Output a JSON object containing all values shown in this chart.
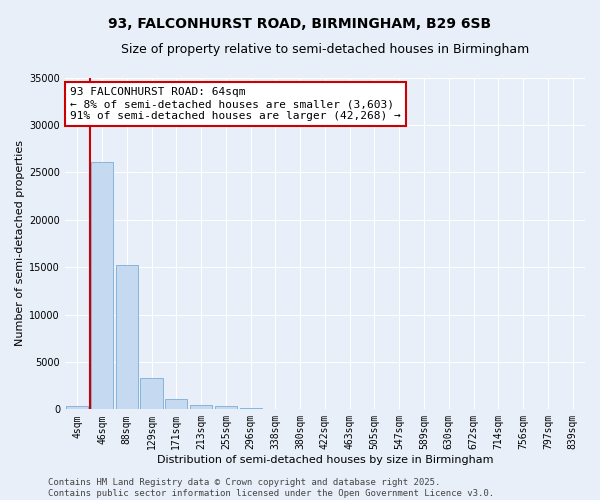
{
  "title_line1": "93, FALCONHURST ROAD, BIRMINGHAM, B29 6SB",
  "title_line2": "Size of property relative to semi-detached houses in Birmingham",
  "xlabel": "Distribution of semi-detached houses by size in Birmingham",
  "ylabel": "Number of semi-detached properties",
  "categories": [
    "4sqm",
    "46sqm",
    "88sqm",
    "129sqm",
    "171sqm",
    "213sqm",
    "255sqm",
    "296sqm",
    "338sqm",
    "380sqm",
    "422sqm",
    "463sqm",
    "505sqm",
    "547sqm",
    "589sqm",
    "630sqm",
    "672sqm",
    "714sqm",
    "756sqm",
    "797sqm",
    "839sqm"
  ],
  "values": [
    400,
    26100,
    15200,
    3300,
    1050,
    500,
    300,
    100,
    0,
    0,
    0,
    0,
    0,
    0,
    0,
    0,
    0,
    0,
    0,
    0,
    0
  ],
  "bar_color": "#c5d9f0",
  "bar_edge_color": "#7badd4",
  "vline_x_pos": 0.5,
  "vline_color": "#cc0000",
  "annotation_text": "93 FALCONHURST ROAD: 64sqm\n← 8% of semi-detached houses are smaller (3,603)\n91% of semi-detached houses are larger (42,268) →",
  "ylim": [
    0,
    35000
  ],
  "yticks": [
    0,
    5000,
    10000,
    15000,
    20000,
    25000,
    30000,
    35000
  ],
  "bg_color": "#e8eff9",
  "plot_bg_color": "#e8eff9",
  "grid_color": "#ffffff",
  "footer_text": "Contains HM Land Registry data © Crown copyright and database right 2025.\nContains public sector information licensed under the Open Government Licence v3.0.",
  "title_fontsize": 10,
  "subtitle_fontsize": 9,
  "axis_label_fontsize": 8,
  "tick_fontsize": 7,
  "annotation_fontsize": 8,
  "footer_fontsize": 6.5
}
